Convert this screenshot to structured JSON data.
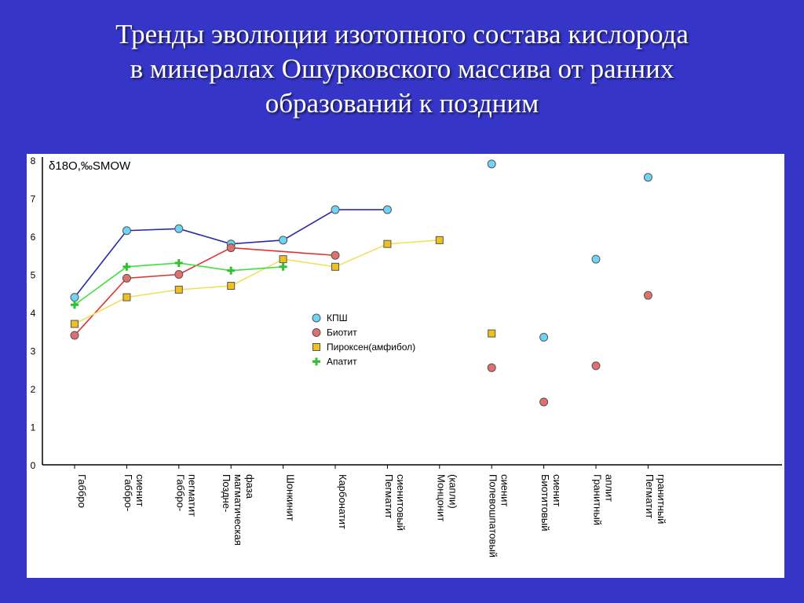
{
  "title_lines": [
    "Тренды эволюции изотопного состава кислорода",
    "в минералах Ошурковского массива от ранних",
    "образований к поздним"
  ],
  "chart_data": {
    "type": "line",
    "title": "Тренды эволюции изотопного состава кислорода в минералах Ошурковского массива от ранних образований к поздним",
    "ylabel": "δ18O,‰SMOW",
    "ylim": [
      0,
      8
    ],
    "yticks": [
      "0",
      "1",
      "2",
      "3",
      "4",
      "5",
      "6",
      "7",
      "8"
    ],
    "grid": false,
    "legend_position": "center",
    "categories": [
      [
        "Габбро"
      ],
      [
        "Габбро-",
        "сиенит"
      ],
      [
        "Габбро-",
        "пегматит"
      ],
      [
        "Поздне-",
        "магматическая",
        "фаза"
      ],
      [
        "Шонкинит"
      ],
      [
        "Карбонатит"
      ],
      [
        "Пегматит",
        "сиенитовый"
      ],
      [
        "Монцонит",
        "(капли)"
      ],
      [
        "Полевошпатовый",
        "сиенит"
      ],
      [
        "Биотитовый",
        "сиенит"
      ],
      [
        "Гранитный",
        "аплит"
      ],
      [
        "Пегматит",
        "гранитный"
      ]
    ],
    "series": [
      {
        "name": "КПШ",
        "marker": "circle",
        "fill": "#6fd3f5",
        "line": "#2a2aa8",
        "values": [
          4.4,
          6.15,
          6.2,
          5.8,
          5.9,
          6.7,
          6.7,
          null,
          7.9,
          3.35,
          5.4,
          7.55
        ],
        "connected_until": 6
      },
      {
        "name": "Биотит",
        "marker": "circle",
        "fill": "#e07070",
        "line": "#e03030",
        "values": [
          3.4,
          4.9,
          5.0,
          5.7,
          null,
          5.5,
          null,
          null,
          2.55,
          1.65,
          2.6,
          4.45
        ],
        "connected_until": 5
      },
      {
        "name": "Пироксен(амфибол)",
        "marker": "square",
        "fill": "#f0c020",
        "line": "#f0e060",
        "values": [
          3.7,
          4.4,
          4.6,
          4.7,
          5.4,
          5.2,
          5.8,
          5.9,
          3.45,
          null,
          null,
          null
        ],
        "connected_until": 7
      },
      {
        "name": "Апатит",
        "marker": "plus",
        "fill": "#30c030",
        "line": "#40e040",
        "values": [
          4.2,
          5.2,
          5.3,
          5.1,
          5.2,
          null,
          null,
          null,
          null,
          null,
          null,
          null
        ],
        "connected_until": 4
      }
    ]
  }
}
